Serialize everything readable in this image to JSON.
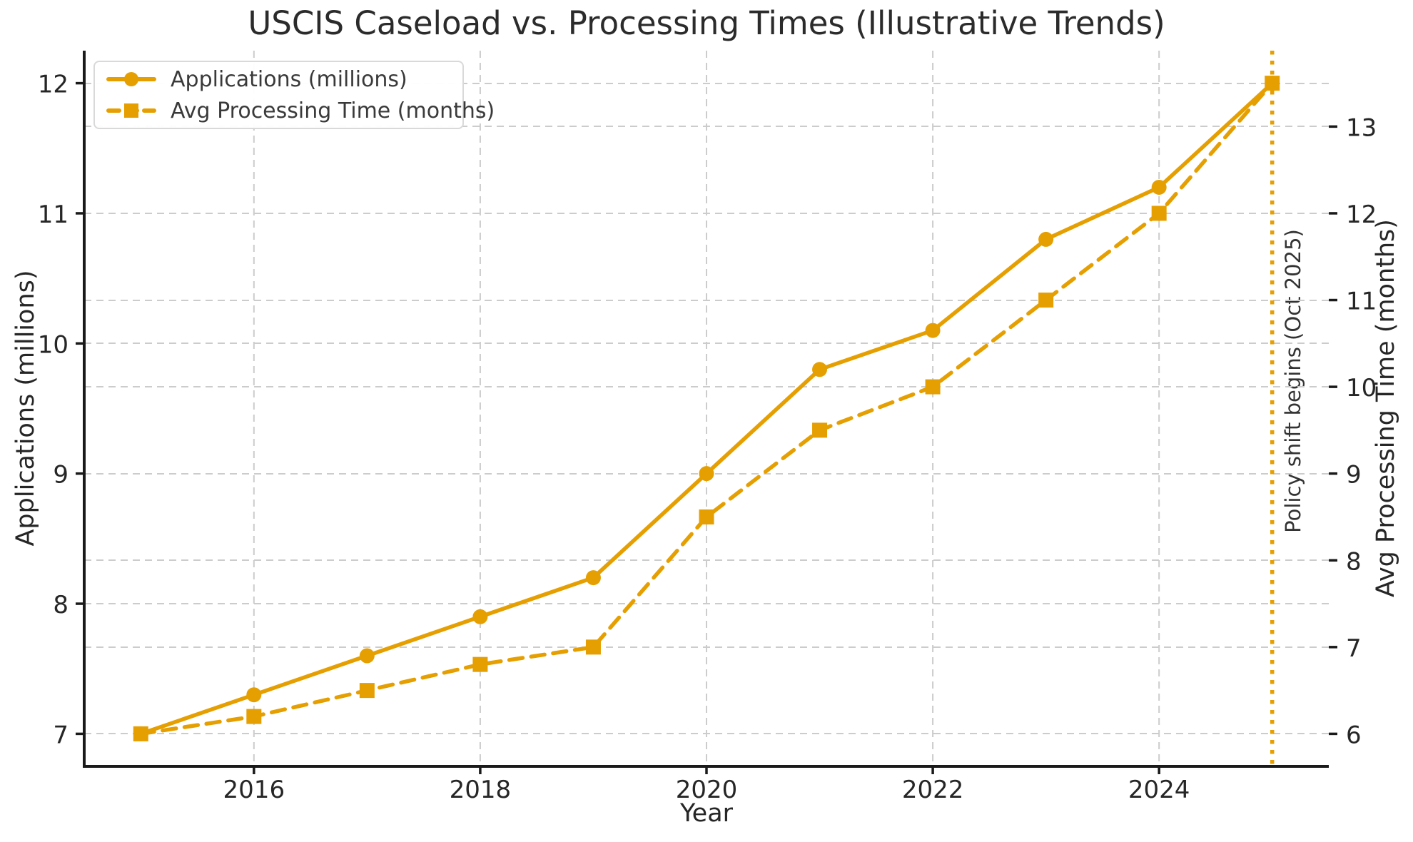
{
  "chart_data": {
    "type": "line",
    "title": "USCIS Caseload vs. Processing Times (Illustrative Trends)",
    "xlabel": "Year",
    "ylabel_left": "Applications (millions)",
    "ylabel_right": "Avg Processing Time (months)",
    "x": [
      2015,
      2016,
      2017,
      2018,
      2019,
      2020,
      2021,
      2022,
      2023,
      2024,
      2025
    ],
    "series": [
      {
        "name": "Applications (millions)",
        "axis": "left",
        "line_style": "solid",
        "marker": "circle",
        "values": [
          7.0,
          7.3,
          7.6,
          7.9,
          8.2,
          9.0,
          9.8,
          10.1,
          10.8,
          11.2,
          12.0
        ]
      },
      {
        "name": "Avg Processing Time (months)",
        "axis": "right",
        "line_style": "dashed",
        "marker": "square",
        "values": [
          6.0,
          6.2,
          6.5,
          6.8,
          7.0,
          8.5,
          9.5,
          10.0,
          11.0,
          12.0,
          13.5
        ]
      }
    ],
    "xticks": [
      2016,
      2018,
      2020,
      2022,
      2024
    ],
    "yticks_left": [
      7,
      8,
      9,
      10,
      11,
      12
    ],
    "yticks_right": [
      6,
      7,
      8,
      9,
      10,
      11,
      12,
      13
    ],
    "xlim": [
      2014.5,
      2025.5
    ],
    "ylim_left": [
      6.75,
      12.25
    ],
    "ylim_right": [
      5.625,
      13.875
    ],
    "grid": true,
    "legend_position": "upper-left",
    "annotation": {
      "text": "Policy shift begins (Oct 2025)",
      "x": 2025,
      "line_style": "dotted-vertical"
    },
    "colors": {
      "series": "#E69F00",
      "grid": "#cccccc",
      "text": "#262626",
      "annotation_text": "#333333",
      "spine": "#1a1a1a",
      "legend_border": "#d9d9d9",
      "background": "#ffffff"
    }
  }
}
